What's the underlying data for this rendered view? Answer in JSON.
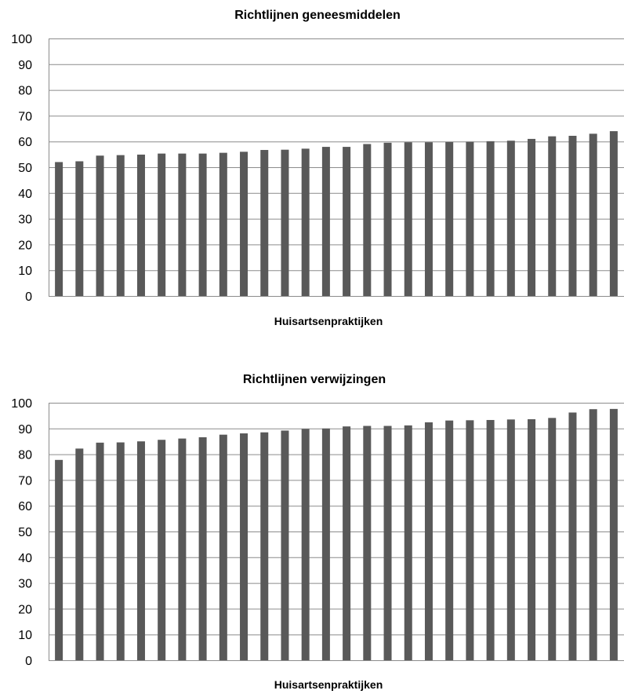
{
  "chart_data": [
    {
      "type": "bar",
      "title": "Richtlijnen geneesmiddelen",
      "xlabel": "Huisartsenpraktijken",
      "ylabel": "",
      "ylim": [
        0,
        100
      ],
      "yticks": [
        "0",
        "10",
        "20",
        "30",
        "40",
        "50",
        "60",
        "70",
        "80",
        "90",
        "100"
      ],
      "grid": true,
      "bar_color": "#595959",
      "values": [
        52.0,
        52.3,
        54.5,
        54.7,
        54.9,
        55.3,
        55.3,
        55.3,
        55.6,
        56.0,
        56.7,
        56.8,
        57.2,
        57.9,
        57.9,
        59.0,
        59.5,
        59.7,
        59.7,
        59.8,
        59.9,
        60.1,
        60.3,
        61.0,
        62.0,
        62.2,
        63.0,
        64.0
      ]
    },
    {
      "type": "bar",
      "title": "Richtlijnen verwijzingen",
      "xlabel": "Huisartsenpraktijken",
      "ylabel": "",
      "ylim": [
        0,
        100
      ],
      "yticks": [
        "0",
        "10",
        "20",
        "30",
        "40",
        "50",
        "60",
        "70",
        "80",
        "90",
        "100"
      ],
      "grid": true,
      "bar_color": "#595959",
      "values": [
        77.8,
        82.2,
        84.5,
        84.6,
        85.0,
        85.6,
        86.1,
        86.6,
        87.6,
        88.1,
        88.5,
        89.2,
        89.8,
        90.0,
        90.8,
        91.0,
        91.0,
        91.2,
        92.4,
        93.1,
        93.2,
        93.3,
        93.5,
        93.6,
        94.1,
        96.2,
        97.5,
        97.6
      ]
    }
  ]
}
